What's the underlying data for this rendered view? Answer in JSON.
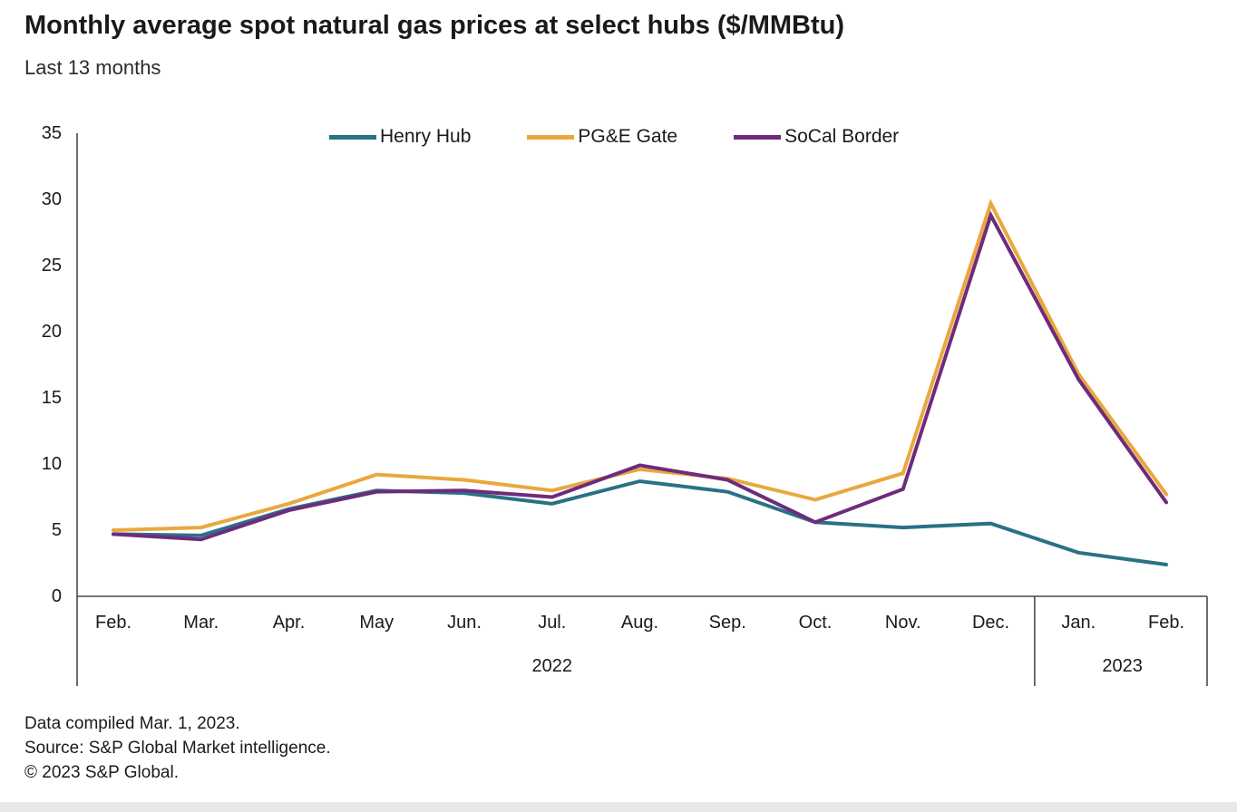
{
  "title": "Monthly average spot natural gas prices at select hubs ($/MMBtu)",
  "subtitle": "Last 13 months",
  "footer": {
    "line1": "Data compiled Mar. 1, 2023.",
    "line2": "Source: S&P Global Market intelligence.",
    "line3": "© 2023 S&P Global."
  },
  "chart_data": {
    "type": "line",
    "title": "Monthly average spot natural gas prices at select hubs ($/MMBtu)",
    "subtitle": "Last 13 months",
    "categories": [
      "Feb.",
      "Mar.",
      "Apr.",
      "May",
      "Jun.",
      "Jul.",
      "Aug.",
      "Sep.",
      "Oct.",
      "Nov.",
      "Dec.",
      "Jan.",
      "Feb."
    ],
    "year_groups": [
      {
        "label": "2022",
        "start": 0,
        "end": 10
      },
      {
        "label": "2023",
        "start": 11,
        "end": 12
      }
    ],
    "series": [
      {
        "name": "Henry Hub",
        "color": "#2a7186",
        "values": [
          4.7,
          4.6,
          6.6,
          8.0,
          7.8,
          7.0,
          8.7,
          7.9,
          5.6,
          5.2,
          5.5,
          3.3,
          2.4
        ]
      },
      {
        "name": "PG&E Gate",
        "color": "#e9a83e",
        "values": [
          5.0,
          5.2,
          7.0,
          9.2,
          8.8,
          8.0,
          9.6,
          8.9,
          7.3,
          9.3,
          29.7,
          16.8,
          7.7
        ]
      },
      {
        "name": "SoCal Border",
        "color": "#6e2b7d",
        "values": [
          4.7,
          4.3,
          6.5,
          7.9,
          8.0,
          7.5,
          9.9,
          8.8,
          5.6,
          8.1,
          28.8,
          16.4,
          7.1
        ]
      }
    ],
    "ylim": [
      0,
      35
    ],
    "yticks": [
      0,
      5,
      10,
      15,
      20,
      25,
      30,
      35
    ],
    "xlabel": "",
    "ylabel": "",
    "grid": false,
    "legend_position": "top"
  }
}
